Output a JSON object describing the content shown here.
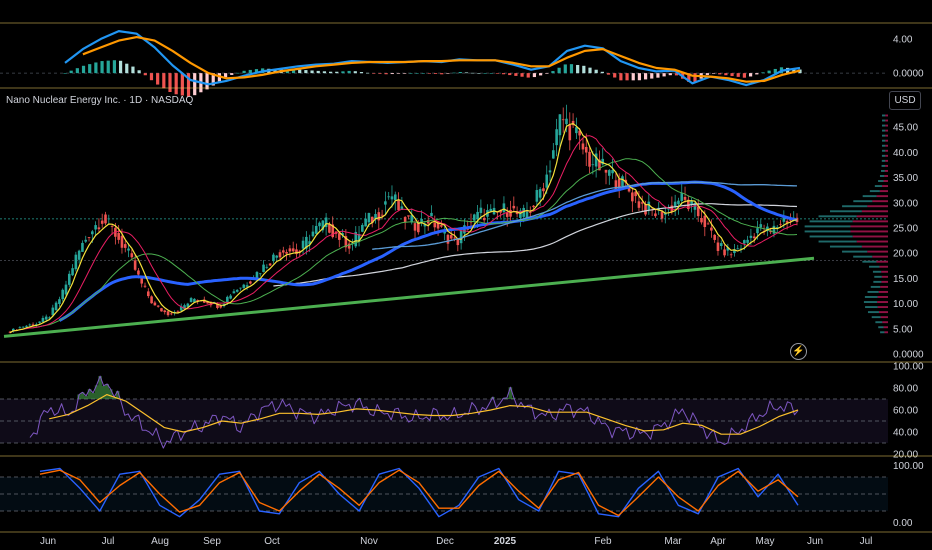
{
  "title": "Nano Nuclear Energy Inc. · 1D · NASDAQ",
  "currency": "USD",
  "icons": {
    "alert": "lightning-bolt-icon"
  },
  "colors": {
    "up": "#26a69a",
    "down": "#ef5350",
    "ma_fast": "#f5e13b",
    "ma_mid": "#e91e63",
    "ma_slow": "#4caf50",
    "ma_long": "#2962ff",
    "ma_200": "#d1d4dc",
    "trend": "#4caf50",
    "macd": "#2196f3",
    "signal": "#ff9800",
    "rsi": "#7e57c2",
    "rsi_ma": "#fbc02d",
    "stoch_k": "#2962ff",
    "stoch_d": "#ff6d00"
  },
  "chart_data": [
    {
      "type": "line",
      "panel": "MACD",
      "y_ticks": [
        "4.00",
        "0.0000"
      ],
      "ylim": [
        -1.5,
        5.5
      ],
      "series": [
        {
          "role": "macd",
          "values": [
            1.2,
            2.8,
            4.0,
            4.9,
            4.6,
            3.0,
            0.9,
            -0.8,
            -1.3,
            -0.9,
            -0.3,
            0.2,
            0.5,
            0.8,
            1.0,
            1.1,
            1.4,
            1.3,
            1.2,
            1.3,
            1.4,
            1.3,
            1.6,
            1.5,
            1.5,
            1.0,
            0.4,
            0.8,
            2.6,
            3.2,
            2.9,
            1.4,
            0.6,
            0.2,
            0.3,
            -1.2,
            -0.4,
            -0.8,
            -1.4,
            -0.8,
            0.3,
            0.6
          ]
        },
        {
          "role": "signal",
          "values": [
            null,
            2.2,
            3.0,
            3.8,
            4.2,
            3.8,
            2.6,
            1.2,
            0.0,
            -0.6,
            -0.5,
            -0.2,
            0.2,
            0.5,
            0.8,
            1.0,
            1.2,
            1.3,
            1.3,
            1.3,
            1.4,
            1.4,
            1.5,
            1.5,
            1.5,
            1.2,
            0.8,
            0.8,
            1.8,
            2.6,
            2.8,
            2.0,
            1.2,
            0.6,
            0.4,
            -0.3,
            -0.4,
            -0.6,
            -1.0,
            -0.9,
            -0.2,
            0.3
          ]
        }
      ]
    },
    {
      "type": "candlestick",
      "panel": "Price",
      "y_ticks": [
        "0.0000",
        "5.00",
        "10.00",
        "15.00",
        "20.00",
        "25.00",
        "30.00",
        "35.00",
        "40.00",
        "45.00"
      ],
      "ylim": [
        0,
        48
      ],
      "x_labels": [
        "Jun",
        "Jul",
        "Aug",
        "Sep",
        "Oct",
        "Nov",
        "Dec",
        "2025",
        "Feb",
        "Mar",
        "Apr",
        "May",
        "Jun",
        "Jul"
      ],
      "close": [
        4.5,
        5.5,
        6,
        7.5,
        12,
        19,
        24,
        27,
        24,
        20,
        14,
        9.5,
        8,
        9,
        11,
        10.5,
        9.5,
        12.5,
        14,
        16.5,
        19,
        21,
        20,
        24,
        26,
        23.5,
        21.5,
        26,
        27.5,
        32,
        27,
        25.5,
        27,
        24,
        22,
        26,
        28,
        27.5,
        29,
        27,
        30,
        36,
        47,
        44,
        39,
        37,
        35,
        33,
        30,
        28,
        28,
        31,
        29,
        26,
        21,
        20,
        22,
        25,
        24,
        27,
        26.5
      ],
      "high_low_note": "daily candles; highs ~47 (late Jan), lows ~3.5 (start)",
      "moving_averages": [
        "fast (yellow)",
        "mid (pink)",
        "slow (green)",
        "long (blue, thick)",
        "200-day (white)"
      ],
      "trendline": {
        "from": 3.5,
        "to": 19
      },
      "volume_profile": true
    },
    {
      "type": "line",
      "panel": "RSI",
      "y_ticks": [
        "100.00",
        "80.00",
        "60.00",
        "40.00",
        "20.00"
      ],
      "ylim": [
        20,
        100
      ],
      "band": [
        30,
        70
      ],
      "series": [
        {
          "role": "rsi",
          "values": [
            35,
            62,
            56,
            78,
            86,
            58,
            44,
            30,
            40,
            46,
            55,
            44,
            60,
            66,
            58,
            54,
            62,
            66,
            58,
            57,
            52,
            56,
            54,
            60,
            64,
            74,
            60,
            54,
            62,
            58,
            44,
            40,
            38,
            46,
            60,
            44,
            30,
            42,
            56,
            64,
            60
          ]
        },
        {
          "role": "rsi_ma",
          "values": [
            null,
            52,
            56,
            64,
            74,
            68,
            56,
            44,
            40,
            44,
            50,
            48,
            52,
            57,
            57,
            56,
            58,
            61,
            60,
            58,
            56,
            55,
            55,
            57,
            60,
            64,
            63,
            58,
            58,
            58,
            52,
            46,
            41,
            42,
            48,
            46,
            38,
            38,
            45,
            54,
            60
          ]
        }
      ]
    },
    {
      "type": "line",
      "panel": "Stochastic",
      "y_ticks": [
        "100.00",
        "0.00"
      ],
      "ylim": [
        -10,
        110
      ],
      "band": [
        20,
        80
      ],
      "series": [
        {
          "role": "stoch_k",
          "values": [
            90,
            95,
            60,
            20,
            85,
            90,
            30,
            10,
            40,
            85,
            90,
            20,
            15,
            70,
            90,
            50,
            20,
            85,
            95,
            60,
            10,
            30,
            80,
            95,
            40,
            20,
            90,
            85,
            15,
            10,
            60,
            90,
            30,
            15,
            80,
            95,
            45,
            85,
            30
          ]
        },
        {
          "role": "stoch_d",
          "values": [
            85,
            92,
            75,
            35,
            65,
            88,
            50,
            18,
            30,
            70,
            88,
            35,
            20,
            55,
            85,
            60,
            30,
            70,
            92,
            70,
            25,
            25,
            65,
            90,
            55,
            25,
            75,
            88,
            30,
            12,
            45,
            80,
            45,
            20,
            65,
            90,
            55,
            75,
            45
          ]
        }
      ]
    }
  ]
}
